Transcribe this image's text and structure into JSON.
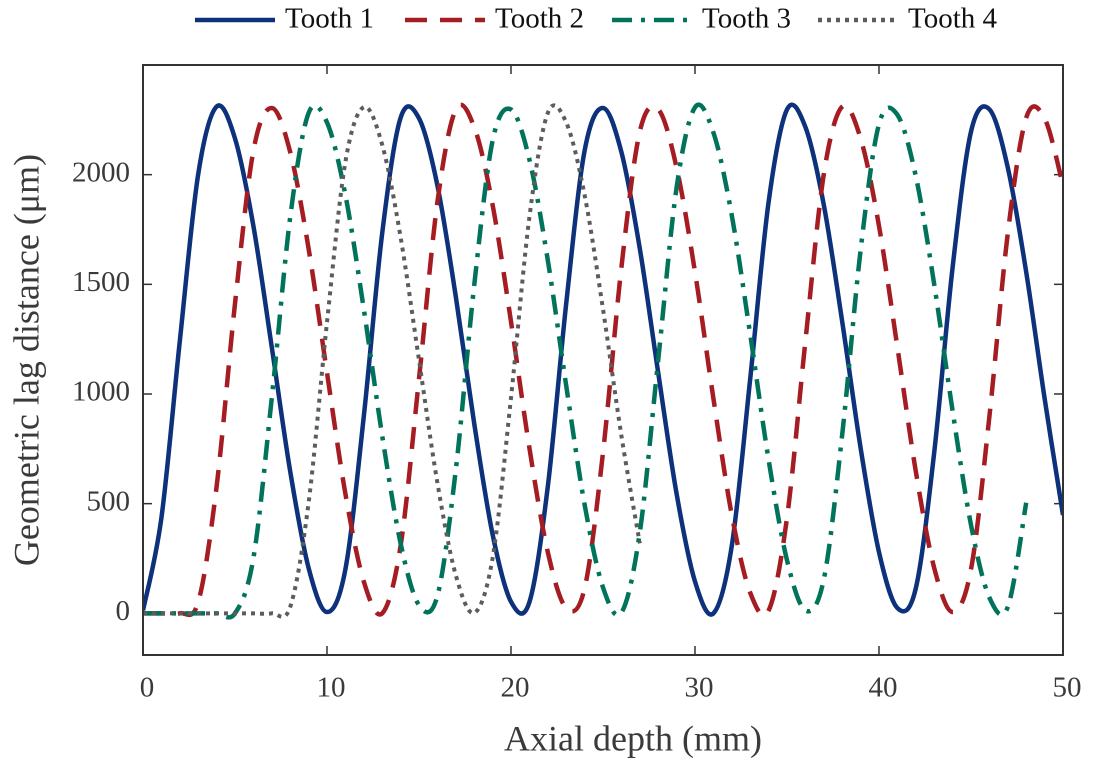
{
  "chart_data": {
    "type": "line",
    "xlabel": "Axial depth (mm)",
    "ylabel": "Geometric lag distance (μm)",
    "x": [
      0,
      1,
      2,
      3,
      4,
      5,
      6,
      7,
      8,
      9,
      10,
      11,
      12,
      13,
      14,
      15,
      16,
      17,
      18,
      19,
      20,
      21,
      22,
      23,
      24,
      25,
      26,
      27,
      28,
      29,
      30,
      31,
      32,
      33,
      34,
      35,
      36,
      37,
      38,
      39,
      40,
      41,
      42,
      43,
      44,
      45,
      46,
      47,
      48,
      49,
      50
    ],
    "series": [
      {
        "name": "Tooth 1",
        "color": "#0d317a",
        "linestyle": "solid",
        "values": [
          13,
          435,
          1241,
          2002,
          2310,
          2165,
          1766,
          1213,
          647,
          207,
          6,
          201,
          898,
          1733,
          2259,
          2257,
          1951,
          1444,
          866,
          360,
          53,
          51,
          578,
          1412,
          2109,
          2304,
          2103,
          1663,
          1097,
          545,
          145,
          0,
          308,
          1069,
          1875,
          2297,
          2217,
          1862,
          1330,
          754,
          279,
          24,
          114,
          733,
          1577,
          2196,
          2298,
          2032,
          1556,
          980,
          448
        ]
      },
      {
        "name": "Tooth 2",
        "color": "#a51c22",
        "linestyle": "dashed",
        "values": [
          0,
          0,
          0,
          51,
          578,
          1412,
          2109,
          2304,
          2103,
          1663,
          1097,
          545,
          145,
          0,
          308,
          1069,
          1875,
          2297,
          2217,
          1862,
          1330,
          754,
          279,
          24,
          114,
          733,
          1577,
          2196,
          2298,
          2032,
          1556,
          980,
          448,
          94,
          13,
          435,
          1241,
          2002,
          2310,
          2165,
          1766,
          1213,
          647,
          207,
          6,
          201,
          898,
          1733,
          2259,
          2257,
          1951
        ]
      },
      {
        "name": "Tooth 3",
        "color": "#00735a",
        "linestyle": "dashdot",
        "values": [
          0,
          0,
          0,
          0,
          0,
          0,
          252,
          983,
          1806,
          2281,
          2238,
          1907,
          1387,
          810,
          319,
          37,
          80,
          654,
          1495,
          2155,
          2297,
          2069,
          1610,
          1038,
          496,
          118,
          3,
          369,
          1155,
          1941,
          2307,
          2192,
          1814,
          1272,
          700,
          242,
          13,
          155,
          815,
          1656,
          2230,
          2273,
          1993,
          1500,
          923,
          403,
          72,
          29,
          504,
          null,
          null
        ]
      },
      {
        "name": "Tooth 4",
        "color": "#5c5c5c",
        "linestyle": "dotted",
        "values": [
          0,
          0,
          0,
          0,
          0,
          0,
          0,
          0,
          29,
          504,
          1327,
          2058,
          2308,
          2136,
          1715,
          1155,
          595,
          174,
          2,
          252,
          983,
          1806,
          2281,
          2238,
          1907,
          1387,
          810,
          319,
          null,
          null,
          null,
          null,
          null,
          null,
          null,
          null,
          null,
          null,
          null,
          null,
          null,
          null,
          null,
          null,
          null,
          null,
          null,
          null,
          null,
          null,
          null
        ]
      }
    ],
    "xlim": [
      0,
      50
    ],
    "xticks": [
      0,
      10,
      20,
      30,
      40,
      50
    ],
    "ylim": [
      -190,
      2500
    ],
    "yticks": [
      0,
      500,
      1000,
      1500,
      2000
    ],
    "grid": false,
    "legend": "top"
  }
}
